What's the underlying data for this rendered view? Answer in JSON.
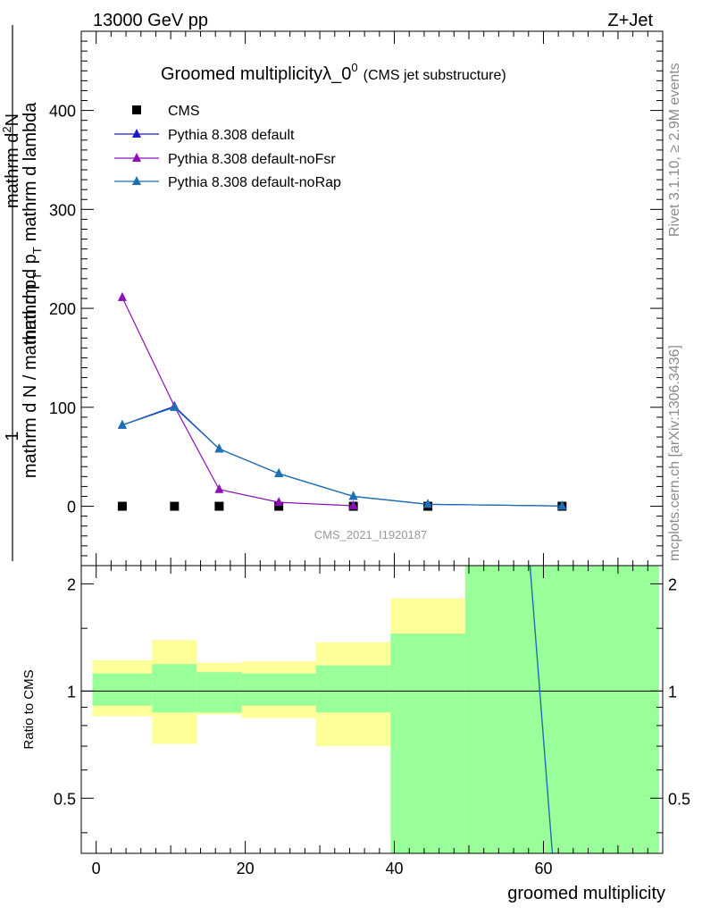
{
  "header": {
    "left": "13000 GeV pp",
    "right": "Z+Jet"
  },
  "side_labels": {
    "rivet": "Rivet 3.1.10, ≥ 2.9M events",
    "mcplots": "mcplots.cern.ch [arXiv:1306.3436]"
  },
  "chart_data": [
    {
      "type": "line",
      "title_main": "Groomed multiplicityλ_0",
      "title_sup": "0",
      "title_paren": "(CMS jet substructure)",
      "ylabel_top": "1",
      "ylabel_den": "mathrm d N / mathrm d p",
      "ylabel_den_sub": "T",
      "ylabel_num": "mathrm d",
      "ylabel_num_sup": "2",
      "ylabel_num_end": "N",
      "ylabel_den2": "mathrm d p",
      "ylabel_den2_sub": "T",
      "ylabel_den3": "mathrm d lambda",
      "watermark": "CMS_2021_I1920187",
      "xlim": [
        -2,
        76
      ],
      "ylim": [
        -60,
        480
      ],
      "yticks": [
        0,
        100,
        200,
        300,
        400
      ],
      "ytick_labels": [
        "0",
        "100",
        "200",
        "300",
        "400"
      ],
      "legend": [
        "CMS",
        "Pythia 8.308 default",
        "Pythia 8.308 default-noFsr",
        "Pythia 8.308 default-noRap"
      ],
      "series": [
        {
          "name": "CMS",
          "color": "#000000",
          "marker": "square",
          "x": [
            3.5,
            10.5,
            16.5,
            24.5,
            34.5,
            44.5,
            62.5
          ],
          "y": [
            0,
            0,
            0,
            0,
            0,
            0,
            0
          ]
        },
        {
          "name": "Pythia 8.308 default",
          "color": "#1a1acc",
          "marker": "triangle",
          "x": [
            3.5,
            10.5,
            16.5,
            24.5,
            34.5,
            44.5,
            62.5
          ],
          "y": [
            82,
            101,
            58,
            33,
            10,
            2,
            0.3
          ]
        },
        {
          "name": "Pythia 8.308 default-noFsr",
          "color": "#8a10b8",
          "marker": "triangle",
          "x": [
            3.5,
            10.5,
            16.5,
            24.5,
            34.5
          ],
          "y": [
            211,
            101,
            17,
            4,
            0.5
          ]
        },
        {
          "name": "Pythia 8.308 default-noRap",
          "color": "#1a70b0",
          "marker": "triangle",
          "x": [
            3.5,
            10.5,
            16.5,
            24.5,
            34.5,
            44.5,
            62.5
          ],
          "y": [
            82,
            100,
            58,
            33,
            10,
            2,
            0.3
          ]
        }
      ]
    },
    {
      "type": "area",
      "ylabel": "Ratio to CMS",
      "xlabel": "groomed multiplicity",
      "xlim": [
        -2,
        76
      ],
      "ylim": [
        0.35,
        2.25
      ],
      "log_y": true,
      "xticks": [
        0,
        20,
        40,
        60
      ],
      "xtick_labels": [
        "0",
        "20",
        "40",
        "60"
      ],
      "yticks": [
        0.5,
        1,
        2
      ],
      "ytick_labels": [
        "0.5",
        "1",
        "2"
      ],
      "bins": [
        -0.5,
        7.5,
        13.5,
        19.5,
        29.5,
        39.5,
        49.5,
        75.5
      ],
      "yellow_band": [
        [
          0.85,
          1.22
        ],
        [
          0.71,
          1.39
        ],
        [
          0.86,
          1.2
        ],
        [
          0.84,
          1.21
        ],
        [
          0.7,
          1.37
        ],
        [
          0.35,
          1.82
        ],
        [
          0.35,
          2.25
        ]
      ],
      "green_band": [
        [
          0.91,
          1.12
        ],
        [
          0.87,
          1.19
        ],
        [
          0.87,
          1.13
        ],
        [
          0.91,
          1.12
        ],
        [
          0.87,
          1.18
        ],
        [
          0.35,
          1.45
        ],
        [
          0.35,
          2.25
        ]
      ],
      "reference": 1,
      "ratio_line": {
        "name": "Pythia 8.308 default-noRap",
        "color": "#1a70b0",
        "x": [
          58.2,
          61.2
        ],
        "y": [
          2.25,
          0.35
        ]
      }
    }
  ]
}
